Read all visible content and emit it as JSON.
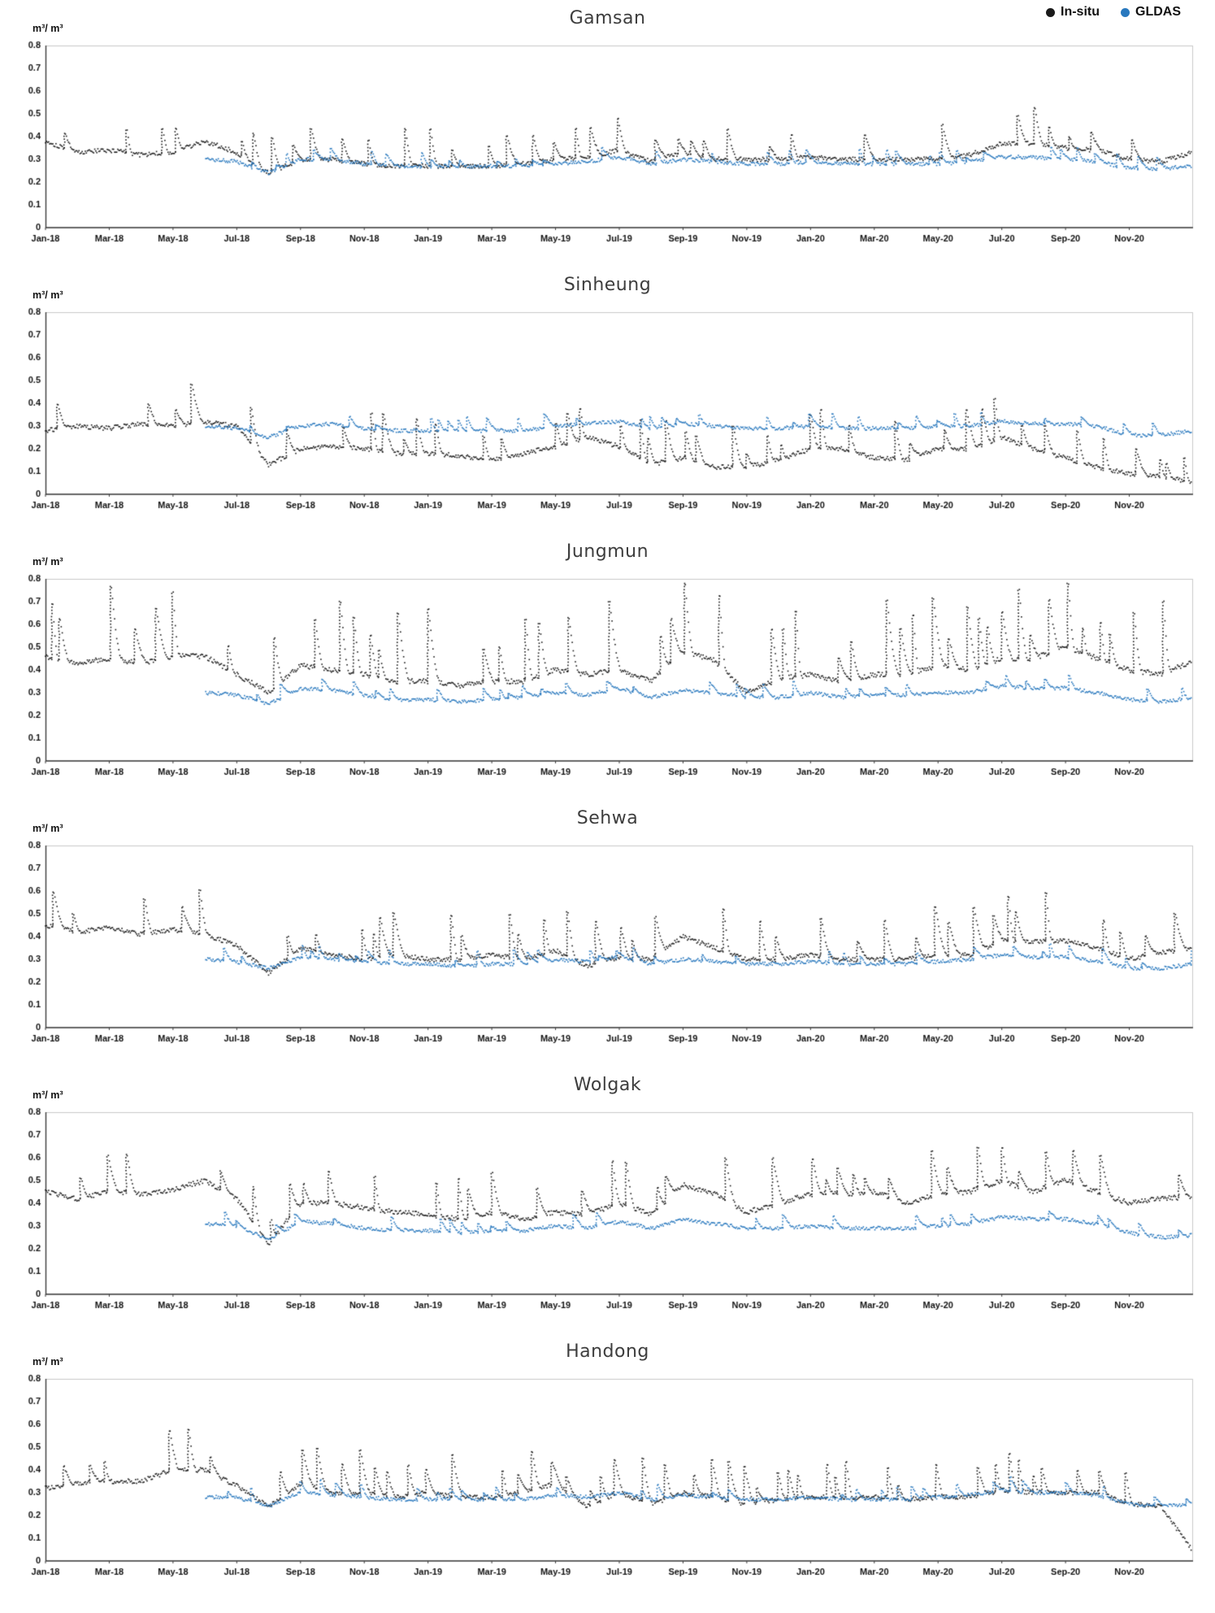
{
  "legend": {
    "items": [
      {
        "label": "In-situ",
        "color": "#1a1a1a"
      },
      {
        "label": "GLDAS",
        "color": "#2878be"
      }
    ]
  },
  "chart_data": [
    {
      "type": "scatter",
      "title": "Gamsan",
      "ylabel": "m³/ m³",
      "ylim": [
        0,
        0.8
      ],
      "yticks": [
        0.8,
        0.7,
        0.6,
        0.5,
        0.4,
        0.3,
        0.2,
        0.1,
        0
      ],
      "months_total": 36,
      "xticks": [
        "Jan-18",
        "Mar-18",
        "May-18",
        "Jul-18",
        "Sep-18",
        "Nov-18",
        "Jan-19",
        "Mar-19",
        "May-19",
        "Jul-19",
        "Sep-19",
        "Nov-19",
        "Jan-20",
        "Mar-20",
        "May-20",
        "Jul-20",
        "Sep-20",
        "Nov-20"
      ],
      "series": [
        {
          "name": "In-situ",
          "color": "#1a1a1a",
          "spike_amp": 0.14,
          "spike_prob": 0.06,
          "jitter": 0.01,
          "seed": 101,
          "monthly": [
            0.38,
            0.33,
            0.34,
            0.32,
            0.33,
            0.38,
            0.33,
            0.24,
            0.3,
            0.3,
            0.28,
            0.27,
            0.27,
            0.27,
            0.27,
            0.28,
            0.3,
            0.31,
            0.34,
            0.29,
            0.33,
            0.3,
            0.3,
            0.3,
            0.31,
            0.3,
            0.3,
            0.3,
            0.3,
            0.32,
            0.37,
            0.37,
            0.35,
            0.34,
            0.3,
            0.29,
            0.33
          ]
        },
        {
          "name": "GLDAS",
          "color": "#2878be",
          "spike_amp": 0.05,
          "spike_prob": 0.05,
          "jitter": 0.008,
          "seed": 102,
          "monthly": [
            null,
            null,
            null,
            null,
            null,
            0.3,
            0.29,
            0.24,
            0.3,
            0.3,
            0.28,
            0.27,
            0.27,
            0.27,
            0.27,
            0.27,
            0.28,
            0.29,
            0.31,
            0.28,
            0.3,
            0.29,
            0.28,
            0.28,
            0.29,
            0.28,
            0.28,
            0.28,
            0.28,
            0.29,
            0.31,
            0.31,
            0.3,
            0.29,
            0.26,
            0.26,
            0.27
          ]
        }
      ]
    },
    {
      "type": "scatter",
      "title": "Sinheung",
      "ylabel": "m³/ m³",
      "ylim": [
        0,
        0.8
      ],
      "yticks": [
        0.8,
        0.7,
        0.6,
        0.5,
        0.4,
        0.3,
        0.2,
        0.1,
        0
      ],
      "months_total": 36,
      "xticks": [
        "Jan-18",
        "Mar-18",
        "May-18",
        "Jul-18",
        "Sep-18",
        "Nov-18",
        "Jan-19",
        "Mar-19",
        "May-19",
        "Jul-19",
        "Sep-19",
        "Nov-19",
        "Jan-20",
        "Mar-20",
        "May-20",
        "Jul-20",
        "Sep-20",
        "Nov-20"
      ],
      "series": [
        {
          "name": "In-situ",
          "color": "#1a1a1a",
          "spike_amp": 0.15,
          "spike_prob": 0.06,
          "jitter": 0.01,
          "seed": 201,
          "monthly": [
            0.28,
            0.3,
            0.29,
            0.31,
            0.3,
            0.32,
            0.3,
            0.13,
            0.2,
            0.21,
            0.2,
            0.18,
            0.18,
            0.17,
            0.15,
            0.18,
            0.21,
            0.25,
            0.21,
            0.13,
            0.16,
            0.12,
            0.12,
            0.15,
            0.2,
            0.2,
            0.16,
            0.15,
            0.2,
            0.2,
            0.25,
            0.2,
            0.16,
            0.12,
            0.09,
            0.08,
            0.05
          ]
        },
        {
          "name": "GLDAS",
          "color": "#2878be",
          "spike_amp": 0.05,
          "spike_prob": 0.05,
          "jitter": 0.008,
          "seed": 202,
          "monthly": [
            null,
            null,
            null,
            null,
            null,
            0.3,
            0.29,
            0.25,
            0.3,
            0.31,
            0.29,
            0.28,
            0.28,
            0.28,
            0.28,
            0.28,
            0.3,
            0.31,
            0.32,
            0.29,
            0.31,
            0.3,
            0.29,
            0.29,
            0.3,
            0.29,
            0.29,
            0.29,
            0.3,
            0.3,
            0.32,
            0.31,
            0.31,
            0.3,
            0.26,
            0.26,
            0.28
          ]
        }
      ]
    },
    {
      "type": "scatter",
      "title": "Jungmun",
      "ylabel": "m³/ m³",
      "ylim": [
        0,
        0.8
      ],
      "yticks": [
        0.8,
        0.7,
        0.6,
        0.5,
        0.4,
        0.3,
        0.2,
        0.1,
        0
      ],
      "months_total": 36,
      "xticks": [
        "Jan-18",
        "Mar-18",
        "May-18",
        "Jul-18",
        "Sep-18",
        "Nov-18",
        "Jan-19",
        "Mar-19",
        "May-19",
        "Jul-19",
        "Sep-19",
        "Nov-19",
        "Jan-20",
        "Mar-20",
        "May-20",
        "Jul-20",
        "Sep-20",
        "Nov-20"
      ],
      "series": [
        {
          "name": "In-situ",
          "color": "#1a1a1a",
          "spike_amp": 0.27,
          "spike_prob": 0.06,
          "jitter": 0.011,
          "seed": 301,
          "monthly": [
            0.46,
            0.43,
            0.45,
            0.43,
            0.46,
            0.46,
            0.38,
            0.3,
            0.42,
            0.4,
            0.38,
            0.35,
            0.35,
            0.33,
            0.35,
            0.35,
            0.4,
            0.38,
            0.4,
            0.35,
            0.48,
            0.44,
            0.3,
            0.36,
            0.38,
            0.35,
            0.38,
            0.38,
            0.42,
            0.4,
            0.45,
            0.45,
            0.5,
            0.45,
            0.4,
            0.38,
            0.44
          ]
        },
        {
          "name": "GLDAS",
          "color": "#2878be",
          "spike_amp": 0.05,
          "spike_prob": 0.05,
          "jitter": 0.008,
          "seed": 302,
          "monthly": [
            null,
            null,
            null,
            null,
            null,
            0.3,
            0.29,
            0.25,
            0.32,
            0.31,
            0.29,
            0.27,
            0.27,
            0.26,
            0.27,
            0.28,
            0.3,
            0.29,
            0.32,
            0.28,
            0.31,
            0.3,
            0.28,
            0.28,
            0.3,
            0.28,
            0.29,
            0.29,
            0.3,
            0.3,
            0.33,
            0.32,
            0.32,
            0.3,
            0.27,
            0.26,
            0.28
          ]
        }
      ]
    },
    {
      "type": "scatter",
      "title": "Sehwa",
      "ylabel": "m³/ m³",
      "ylim": [
        0,
        0.8
      ],
      "yticks": [
        0.8,
        0.7,
        0.6,
        0.5,
        0.4,
        0.3,
        0.2,
        0.1,
        0
      ],
      "months_total": 36,
      "xticks": [
        "Jan-18",
        "Mar-18",
        "May-18",
        "Jul-18",
        "Sep-18",
        "Nov-18",
        "Jan-19",
        "Mar-19",
        "May-19",
        "Jul-19",
        "Sep-19",
        "Nov-19",
        "Jan-20",
        "Mar-20",
        "May-20",
        "Jul-20",
        "Sep-20",
        "Nov-20"
      ],
      "series": [
        {
          "name": "In-situ",
          "color": "#1a1a1a",
          "spike_amp": 0.18,
          "spike_prob": 0.06,
          "jitter": 0.01,
          "seed": 401,
          "monthly": [
            0.45,
            0.42,
            0.44,
            0.41,
            0.43,
            0.41,
            0.36,
            0.24,
            0.35,
            0.32,
            0.3,
            0.32,
            0.3,
            0.3,
            0.32,
            0.3,
            0.34,
            0.27,
            0.31,
            0.3,
            0.4,
            0.35,
            0.3,
            0.3,
            0.32,
            0.3,
            0.3,
            0.3,
            0.32,
            0.32,
            0.38,
            0.38,
            0.38,
            0.35,
            0.3,
            0.33,
            0.35
          ]
        },
        {
          "name": "GLDAS",
          "color": "#2878be",
          "spike_amp": 0.05,
          "spike_prob": 0.05,
          "jitter": 0.008,
          "seed": 402,
          "monthly": [
            null,
            null,
            null,
            null,
            null,
            0.3,
            0.29,
            0.26,
            0.31,
            0.3,
            0.29,
            0.28,
            0.28,
            0.27,
            0.28,
            0.28,
            0.3,
            0.29,
            0.31,
            0.28,
            0.3,
            0.29,
            0.28,
            0.28,
            0.29,
            0.28,
            0.28,
            0.28,
            0.29,
            0.3,
            0.32,
            0.31,
            0.31,
            0.29,
            0.26,
            0.26,
            0.28
          ]
        }
      ]
    },
    {
      "type": "scatter",
      "title": "Wolgak",
      "ylabel": "m³/ m³",
      "ylim": [
        0,
        0.8
      ],
      "yticks": [
        0.8,
        0.7,
        0.6,
        0.5,
        0.4,
        0.3,
        0.2,
        0.1,
        0
      ],
      "months_total": 36,
      "xticks": [
        "Jan-18",
        "Mar-18",
        "May-18",
        "Jul-18",
        "Sep-18",
        "Nov-18",
        "Jan-19",
        "Mar-19",
        "May-19",
        "Jul-19",
        "Sep-19",
        "Nov-19",
        "Jan-20",
        "Mar-20",
        "May-20",
        "Jul-20",
        "Sep-20",
        "Nov-20"
      ],
      "series": [
        {
          "name": "In-situ",
          "color": "#1a1a1a",
          "spike_amp": 0.17,
          "spike_prob": 0.06,
          "jitter": 0.011,
          "seed": 501,
          "monthly": [
            0.45,
            0.42,
            0.45,
            0.44,
            0.46,
            0.5,
            0.42,
            0.22,
            0.4,
            0.4,
            0.38,
            0.36,
            0.35,
            0.33,
            0.36,
            0.33,
            0.36,
            0.35,
            0.4,
            0.35,
            0.48,
            0.44,
            0.36,
            0.4,
            0.44,
            0.44,
            0.45,
            0.4,
            0.44,
            0.45,
            0.5,
            0.45,
            0.5,
            0.45,
            0.4,
            0.42,
            0.43
          ]
        },
        {
          "name": "GLDAS",
          "color": "#2878be",
          "spike_amp": 0.05,
          "spike_prob": 0.05,
          "jitter": 0.008,
          "seed": 502,
          "monthly": [
            null,
            null,
            null,
            null,
            null,
            0.31,
            0.3,
            0.24,
            0.32,
            0.31,
            0.29,
            0.28,
            0.28,
            0.27,
            0.28,
            0.28,
            0.3,
            0.29,
            0.32,
            0.29,
            0.33,
            0.31,
            0.29,
            0.29,
            0.3,
            0.29,
            0.29,
            0.29,
            0.3,
            0.31,
            0.34,
            0.33,
            0.33,
            0.31,
            0.27,
            0.25,
            0.26
          ]
        }
      ]
    },
    {
      "type": "scatter",
      "title": "Handong",
      "ylabel": "m³/ m³",
      "ylim": [
        0,
        0.8
      ],
      "yticks": [
        0.8,
        0.7,
        0.6,
        0.5,
        0.4,
        0.3,
        0.2,
        0.1,
        0
      ],
      "months_total": 36,
      "xticks": [
        "Jan-18",
        "Mar-18",
        "May-18",
        "Jul-18",
        "Sep-18",
        "Nov-18",
        "Jan-19",
        "Mar-19",
        "May-19",
        "Jul-19",
        "Sep-19",
        "Nov-19",
        "Jan-20",
        "Mar-20",
        "May-20",
        "Jul-20",
        "Sep-20",
        "Nov-20"
      ],
      "series": [
        {
          "name": "In-situ",
          "color": "#1a1a1a",
          "spike_amp": 0.16,
          "spike_prob": 0.06,
          "jitter": 0.01,
          "seed": 601,
          "monthly": [
            0.32,
            0.34,
            0.35,
            0.35,
            0.4,
            0.4,
            0.33,
            0.24,
            0.34,
            0.3,
            0.3,
            0.28,
            0.3,
            0.28,
            0.28,
            0.3,
            0.34,
            0.24,
            0.3,
            0.25,
            0.3,
            0.28,
            0.25,
            0.27,
            0.28,
            0.28,
            0.28,
            0.27,
            0.28,
            0.28,
            0.31,
            0.3,
            0.3,
            0.3,
            0.25,
            0.24,
            0.04
          ]
        },
        {
          "name": "GLDAS",
          "color": "#2878be",
          "spike_amp": 0.05,
          "spike_prob": 0.05,
          "jitter": 0.008,
          "seed": 602,
          "monthly": [
            null,
            null,
            null,
            null,
            null,
            0.28,
            0.28,
            0.24,
            0.3,
            0.29,
            0.28,
            0.27,
            0.27,
            0.27,
            0.27,
            0.27,
            0.29,
            0.28,
            0.3,
            0.27,
            0.29,
            0.28,
            0.27,
            0.27,
            0.28,
            0.27,
            0.27,
            0.27,
            0.28,
            0.29,
            0.31,
            0.3,
            0.3,
            0.29,
            0.25,
            0.24,
            0.25
          ]
        }
      ]
    }
  ]
}
